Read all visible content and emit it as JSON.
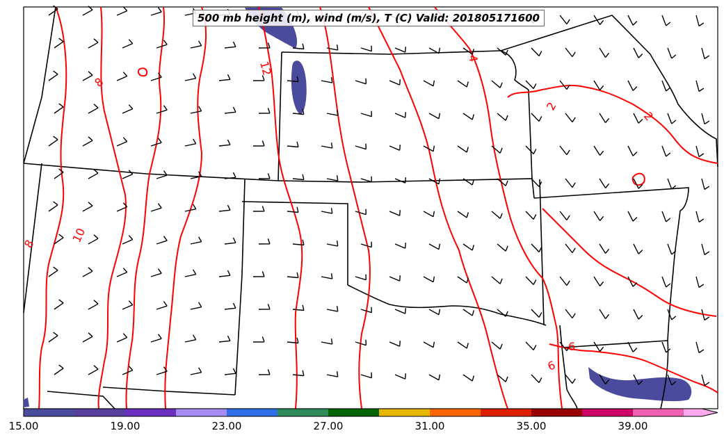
{
  "title": "500 mb height (m), wind (m/s), T (C) Valid: 201805171600",
  "contour_labels": [
    "12",
    "4",
    "8",
    "2",
    "2",
    "8",
    "10",
    "6",
    "6"
  ],
  "colorbar": {
    "colors": [
      "#4b4b9e",
      "#573f9d",
      "#6a2fbf",
      "#a78bf5",
      "#2f6ee6",
      "#2e8b57",
      "#006400",
      "#e8b800",
      "#ff6600",
      "#dd1f00",
      "#990000",
      "#cc0066",
      "#f060b0",
      "#ffaaee"
    ],
    "tick_labels": [
      "15.00",
      "19.00",
      "23.00",
      "27.00",
      "31.00",
      "35.00",
      "39.00"
    ]
  },
  "colors": {
    "isotherm": "#ff0000",
    "boundary": "#000000",
    "shading": "#4b4b9e"
  },
  "icons": {
    "wind": "wind-barb-icon"
  }
}
